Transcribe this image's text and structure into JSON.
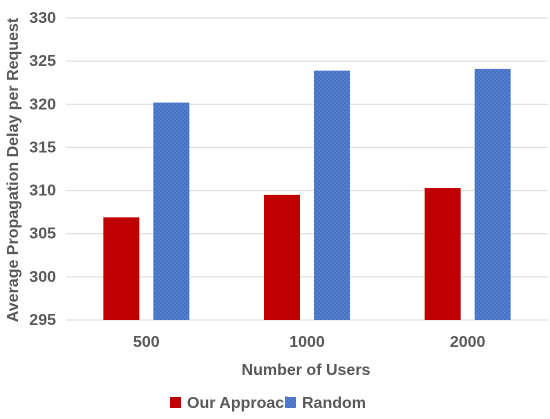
{
  "chart_data": {
    "type": "bar",
    "title": "",
    "xlabel": "Number of Users",
    "ylabel": "Average Propagation Delay per Request",
    "categories": [
      "500",
      "1000",
      "2000"
    ],
    "series": [
      {
        "name": "Our Approach",
        "values": [
          306.9,
          309.5,
          310.3
        ],
        "color": "#c00000"
      },
      {
        "name": "Random",
        "values": [
          320.2,
          323.9,
          324.1
        ],
        "color": "#4472c4"
      }
    ],
    "ylim": [
      295,
      330
    ],
    "yticks": [
      295,
      300,
      305,
      310,
      315,
      320,
      325,
      330
    ],
    "grid": true,
    "legend_position": "bottom"
  }
}
